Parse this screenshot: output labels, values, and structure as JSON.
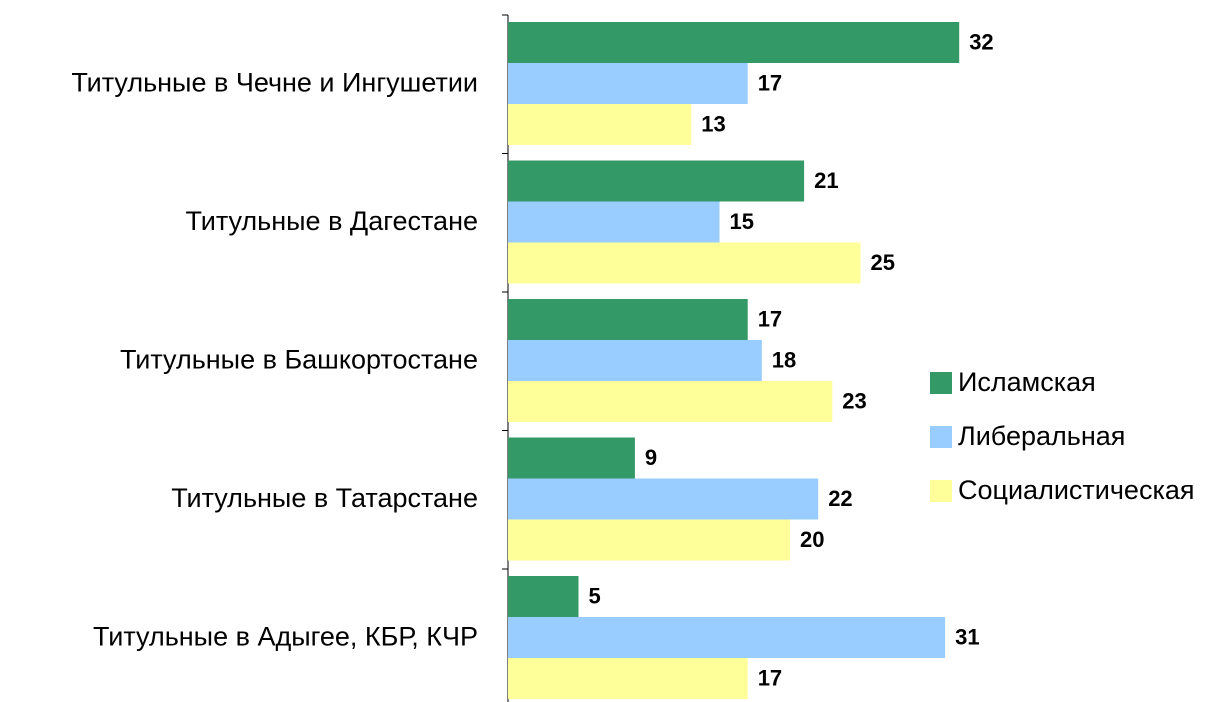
{
  "chart_data": {
    "type": "bar",
    "orientation": "horizontal",
    "categories": [
      "Титульные в Чечне и Ингушетии",
      "Титульные в Дагестане",
      "Титульные в Башкортостане",
      "Титульные в Татарстане",
      "Титульные в Адыгее, КБР, КЧР"
    ],
    "series": [
      {
        "name": "Исламская",
        "color": "#339966",
        "values": [
          32,
          21,
          17,
          9,
          5
        ]
      },
      {
        "name": "Либеральная",
        "color": "#99ccff",
        "values": [
          17,
          15,
          18,
          22,
          31
        ]
      },
      {
        "name": "Социалистическая",
        "color": "#ffff99",
        "values": [
          13,
          25,
          23,
          20,
          17
        ]
      }
    ],
    "legend": "right"
  }
}
